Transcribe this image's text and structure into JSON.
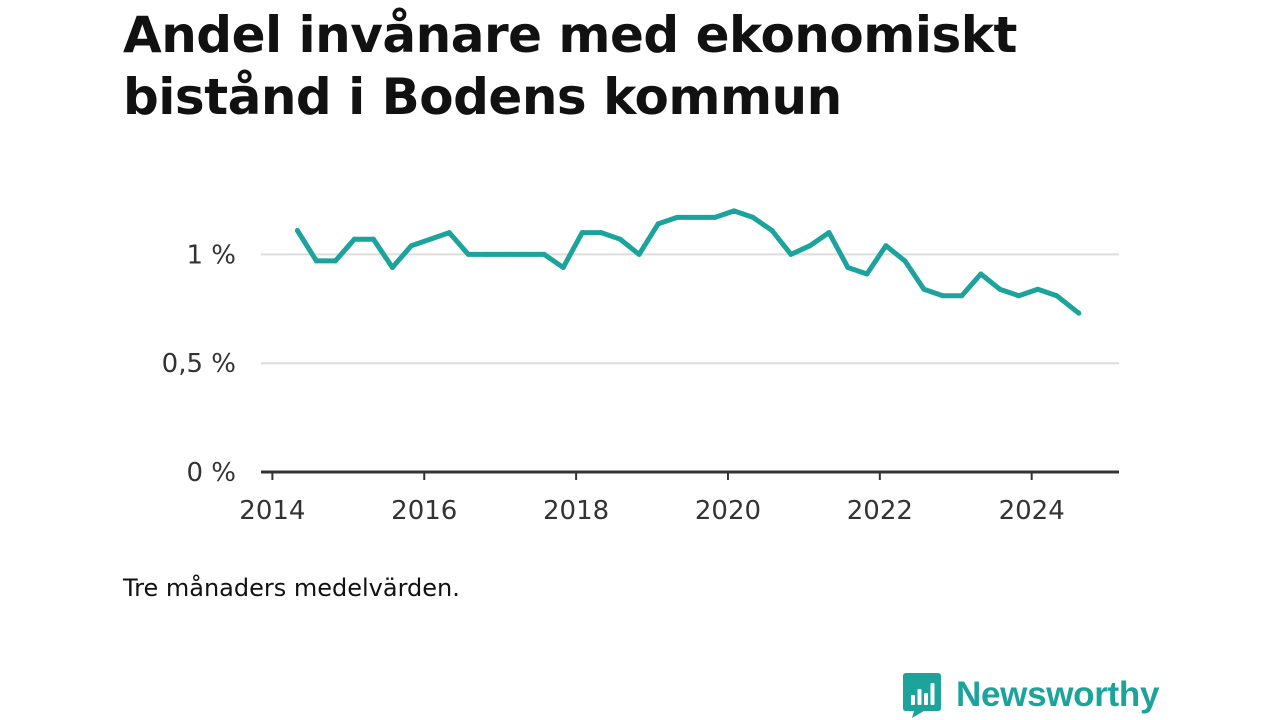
{
  "title": "Andel invånare med ekonomiskt bistånd i Bodens kommun",
  "note": "Tre månaders medelvärden.",
  "brand": {
    "name": "Newsworthy",
    "icon": "newsworthy-chart-bubble-icon",
    "color": "#1ba39c"
  },
  "chart_data": {
    "type": "line",
    "title": "Andel invånare med ekonomiskt bistånd i Bodens kommun",
    "xlabel": "",
    "ylabel": "",
    "y_unit": "%",
    "x_unit": "year",
    "xlim": [
      2013.85,
      2025.15
    ],
    "ylim": [
      0,
      1.25
    ],
    "x_ticks": [
      2014,
      2016,
      2018,
      2020,
      2022,
      2024
    ],
    "x_tick_labels": [
      "2014",
      "2016",
      "2018",
      "2020",
      "2022",
      "2024"
    ],
    "y_ticks": [
      0,
      0.5,
      1
    ],
    "y_tick_labels": [
      "0 %",
      "0,5 %",
      "1 %"
    ],
    "grid": true,
    "legend": "none",
    "line_color": "#1ba39c",
    "series": [
      {
        "x": [
          2014.33,
          2014.58,
          2014.83,
          2015.08,
          2015.33,
          2015.58,
          2015.83,
          2016.08,
          2016.33,
          2016.58,
          2016.83,
          2017.08,
          2017.33,
          2017.58,
          2017.83,
          2018.08,
          2018.33,
          2018.58,
          2018.83,
          2019.08,
          2019.33,
          2019.58,
          2019.83,
          2020.08,
          2020.33,
          2020.58,
          2020.83,
          2021.08,
          2021.33,
          2021.58,
          2021.83,
          2022.08,
          2022.33,
          2022.58,
          2022.83,
          2023.08,
          2023.33,
          2023.58,
          2023.83,
          2024.08,
          2024.33,
          2024.62
        ],
        "y": [
          1.11,
          0.97,
          0.97,
          1.07,
          1.07,
          0.94,
          1.04,
          1.07,
          1.1,
          1.0,
          1.0,
          1.0,
          1.0,
          1.0,
          0.94,
          1.1,
          1.1,
          1.07,
          1.0,
          1.14,
          1.17,
          1.17,
          1.17,
          1.2,
          1.17,
          1.11,
          1.0,
          1.04,
          1.1,
          0.94,
          0.91,
          1.04,
          0.97,
          0.84,
          0.81,
          0.81,
          0.91,
          0.84,
          0.81,
          0.84,
          0.81,
          0.73
        ]
      }
    ]
  }
}
